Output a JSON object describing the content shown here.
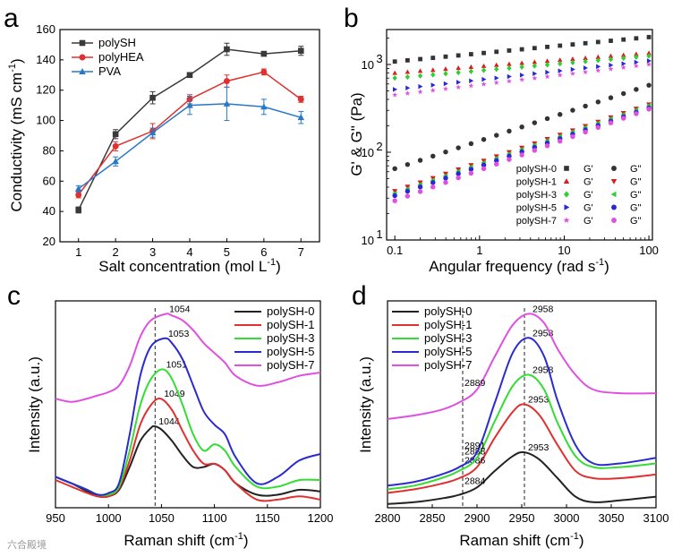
{
  "panel_labels": [
    "a",
    "b",
    "c",
    "d"
  ],
  "watermark": "六合殿境",
  "chart_data": [
    {
      "type": "line",
      "panel": "a",
      "xlabel": "Salt concentration (mol L",
      "xlabel_sup": "-1",
      "xlabel_end": ")",
      "ylabel": "Conductivity (mS cm",
      "ylabel_sup": "-1",
      "ylabel_end": ")",
      "xlim": [
        0.5,
        7.5
      ],
      "ylim": [
        20,
        160
      ],
      "xticks": [
        1,
        2,
        3,
        4,
        5,
        6,
        7
      ],
      "yticks": [
        20,
        40,
        60,
        80,
        100,
        120,
        140,
        160
      ],
      "legend_position": "top-left",
      "series": [
        {
          "name": "polySH",
          "color": "#3a3a3a",
          "marker": "square",
          "x": [
            1,
            2,
            3,
            4,
            5,
            6,
            7
          ],
          "y": [
            41,
            91,
            115,
            130,
            147,
            144,
            146
          ],
          "err": [
            2,
            3,
            4,
            1.5,
            4,
            1.5,
            3
          ]
        },
        {
          "name": "polyHEA",
          "color": "#e03030",
          "marker": "circle",
          "x": [
            1,
            2,
            3,
            4,
            5,
            6,
            7
          ],
          "y": [
            51,
            83,
            93,
            114,
            126,
            132,
            114
          ],
          "err": [
            2,
            3,
            5,
            3,
            4,
            2,
            2
          ]
        },
        {
          "name": "PVA",
          "color": "#2878c8",
          "marker": "triangle",
          "x": [
            1,
            2,
            3,
            4,
            5,
            6,
            7
          ],
          "y": [
            55,
            73,
            92,
            110,
            111,
            109,
            102
          ],
          "err": [
            2,
            3,
            3,
            6,
            11,
            5,
            4
          ]
        }
      ]
    },
    {
      "type": "scatter",
      "panel": "b",
      "xlabel": "Angular frequency (rad s",
      "xlabel_sup": "-1",
      "xlabel_end": ")",
      "ylabel": "G' & G\" (Pa)",
      "x_scale": "log",
      "y_scale": "log",
      "xlim": [
        0.08,
        110
      ],
      "ylim": [
        10,
        2500
      ],
      "xtick_labels": [
        "0.1",
        "1",
        "10",
        "100"
      ],
      "xtick_values": [
        0.1,
        1,
        10,
        100
      ],
      "ytick_values": [
        10,
        100,
        1000
      ],
      "ytick_base": "10",
      "ytick_exponents": [
        "1",
        "2",
        "3"
      ],
      "legend_position": "bottom-right",
      "legend_g1": "G'",
      "legend_g2": "G\"",
      "series": [
        {
          "name": "polySH-0",
          "color": "#333333",
          "gp_marker": "square",
          "gpp_marker": "circle",
          "gp": [
            1080,
            2050
          ],
          "gpp": [
            65,
            580
          ]
        },
        {
          "name": "polySH-1",
          "color": "#d42020",
          "gp_marker": "triangle-up",
          "gpp_marker": "triangle-down",
          "gp": [
            800,
            1350
          ],
          "gpp": [
            36,
            350
          ]
        },
        {
          "name": "polySH-3",
          "color": "#33cc33",
          "gp_marker": "diamond",
          "gpp_marker": "triangle-left",
          "gp": [
            700,
            1250
          ],
          "gpp": [
            34,
            340
          ]
        },
        {
          "name": "polySH-5",
          "color": "#2828d8",
          "gp_marker": "triangle-right",
          "gpp_marker": "hexagon",
          "gp": [
            520,
            1100
          ],
          "gpp": [
            32,
            320
          ]
        },
        {
          "name": "polySH-7",
          "color": "#e050e0",
          "gp_marker": "star",
          "gpp_marker": "hexagon",
          "gp": [
            450,
            1000
          ],
          "gpp": [
            28,
            310
          ]
        }
      ]
    },
    {
      "type": "line",
      "panel": "c",
      "xlabel": "Raman shift (cm",
      "xlabel_sup": "-1",
      "xlabel_end": ")",
      "ylabel": "Intensity (a.u.)",
      "xlim": [
        950,
        1200
      ],
      "xticks": [
        950,
        1000,
        1050,
        1100,
        1150,
        1200
      ],
      "reference_line_x": 1044,
      "legend_position": "top-right",
      "series": [
        {
          "name": "polySH-0",
          "color": "#222222",
          "peak": 1044,
          "peak_label": "1044",
          "x": [
            950,
            965,
            980,
            990,
            1000,
            1010,
            1020,
            1030,
            1040,
            1044,
            1050,
            1060,
            1070,
            1080,
            1090,
            1100,
            1110,
            1120,
            1140,
            1160,
            1180,
            1200
          ],
          "y": [
            0.14,
            0.1,
            0.05,
            0.02,
            0.02,
            0.06,
            0.2,
            0.36,
            0.44,
            0.45,
            0.43,
            0.36,
            0.27,
            0.2,
            0.2,
            0.22,
            0.18,
            0.1,
            0.03,
            0.03,
            0.06,
            0.05
          ]
        },
        {
          "name": "polySH-1",
          "color": "#e03030",
          "peak": 1049,
          "peak_label": "1049",
          "x": [
            950,
            965,
            980,
            990,
            1000,
            1010,
            1020,
            1030,
            1040,
            1049,
            1060,
            1070,
            1080,
            1090,
            1100,
            1110,
            1120,
            1140,
            1160,
            1180,
            1200
          ],
          "y": [
            0.12,
            0.08,
            0.04,
            0.02,
            0.02,
            0.07,
            0.24,
            0.46,
            0.58,
            0.62,
            0.55,
            0.42,
            0.3,
            0.22,
            0.22,
            0.18,
            0.1,
            0.0,
            0.0,
            0.02,
            0.0
          ]
        },
        {
          "name": "polySH-3",
          "color": "#33dd33",
          "peak": 1051,
          "peak_label": "1051",
          "x": [
            950,
            965,
            980,
            990,
            1000,
            1010,
            1020,
            1030,
            1040,
            1051,
            1060,
            1070,
            1080,
            1090,
            1100,
            1110,
            1120,
            1140,
            1160,
            1180,
            1200
          ],
          "y": [
            0.14,
            0.1,
            0.06,
            0.03,
            0.03,
            0.08,
            0.3,
            0.58,
            0.74,
            0.8,
            0.74,
            0.58,
            0.4,
            0.3,
            0.34,
            0.3,
            0.2,
            0.08,
            0.08,
            0.12,
            0.12
          ]
        },
        {
          "name": "polySH-5",
          "color": "#2a2ad0",
          "peak": 1053,
          "peak_label": "1053",
          "x": [
            950,
            965,
            980,
            990,
            1000,
            1010,
            1020,
            1030,
            1040,
            1053,
            1060,
            1070,
            1080,
            1090,
            1100,
            1110,
            1120,
            1140,
            1160,
            1180,
            1200
          ],
          "y": [
            0.14,
            0.1,
            0.06,
            0.03,
            0.04,
            0.1,
            0.4,
            0.76,
            0.94,
            0.99,
            0.96,
            0.86,
            0.7,
            0.54,
            0.46,
            0.4,
            0.26,
            0.1,
            0.14,
            0.24,
            0.28
          ]
        },
        {
          "name": "polySH-7",
          "color": "#e050e0",
          "peak": 1054,
          "peak_label": "1054",
          "x": [
            950,
            965,
            980,
            990,
            1000,
            1010,
            1020,
            1030,
            1040,
            1054,
            1060,
            1070,
            1080,
            1090,
            1100,
            1110,
            1120,
            1140,
            1160,
            1180,
            1200
          ],
          "y": [
            0.62,
            0.6,
            0.62,
            0.64,
            0.66,
            0.7,
            0.82,
            1.0,
            1.1,
            1.14,
            1.13,
            1.1,
            1.04,
            0.96,
            0.9,
            0.84,
            0.76,
            0.7,
            0.72,
            0.76,
            0.78
          ]
        }
      ]
    },
    {
      "type": "line",
      "panel": "d",
      "xlabel": "Raman shift (cm",
      "xlabel_sup": "-1",
      "xlabel_end": ")",
      "ylabel": "Intensity (a.u.)",
      "xlim": [
        2800,
        3100
      ],
      "xticks": [
        2800,
        2850,
        2900,
        2950,
        3000,
        3050,
        3100
      ],
      "reference_lines_x": [
        2884,
        2953
      ],
      "legend_position": "top-left",
      "series": [
        {
          "name": "polySH-0",
          "color": "#222222",
          "peak": 2953,
          "peak_label": "2953",
          "shoulder_label": "2884",
          "x": [
            2800,
            2830,
            2860,
            2880,
            2900,
            2920,
            2940,
            2953,
            2970,
            2990,
            3010,
            3030,
            3060,
            3100
          ],
          "y": [
            0.0,
            0.01,
            0.03,
            0.05,
            0.09,
            0.18,
            0.26,
            0.28,
            0.24,
            0.14,
            0.04,
            0.01,
            0.02,
            0.04
          ]
        },
        {
          "name": "polySH-1",
          "color": "#e03030",
          "peak": 2953,
          "peak_label": "2953",
          "shoulder_label": "2886",
          "x": [
            2800,
            2830,
            2860,
            2880,
            2900,
            2920,
            2940,
            2953,
            2970,
            2990,
            3010,
            3030,
            3060,
            3100
          ],
          "y": [
            0.06,
            0.08,
            0.11,
            0.14,
            0.2,
            0.36,
            0.5,
            0.54,
            0.48,
            0.32,
            0.18,
            0.14,
            0.14,
            0.16
          ]
        },
        {
          "name": "polySH-3",
          "color": "#33dd33",
          "peak": 2958,
          "peak_label": "2958",
          "shoulder_label": "2888",
          "x": [
            2800,
            2830,
            2860,
            2880,
            2900,
            2920,
            2940,
            2958,
            2975,
            2990,
            3010,
            3030,
            3060,
            3100
          ],
          "y": [
            0.08,
            0.1,
            0.14,
            0.18,
            0.25,
            0.45,
            0.64,
            0.7,
            0.62,
            0.44,
            0.26,
            0.2,
            0.2,
            0.22
          ]
        },
        {
          "name": "polySH-5",
          "color": "#2a2ad0",
          "peak": 2958,
          "peak_label": "2958",
          "shoulder_label": "2891",
          "x": [
            2800,
            2830,
            2860,
            2880,
            2900,
            2920,
            2940,
            2958,
            2975,
            2990,
            3010,
            3030,
            3060,
            3100
          ],
          "y": [
            0.1,
            0.12,
            0.16,
            0.2,
            0.28,
            0.55,
            0.82,
            0.9,
            0.8,
            0.56,
            0.32,
            0.22,
            0.22,
            0.25
          ]
        },
        {
          "name": "polySH-7",
          "color": "#e050e0",
          "peak": 2958,
          "peak_label": "2958",
          "shoulder_label": "2889",
          "x": [
            2800,
            2830,
            2860,
            2880,
            2900,
            2920,
            2940,
            2958,
            2975,
            2990,
            3010,
            3030,
            3060,
            3100
          ],
          "y": [
            0.46,
            0.48,
            0.51,
            0.55,
            0.62,
            0.8,
            0.97,
            1.03,
            0.98,
            0.84,
            0.7,
            0.62,
            0.6,
            0.6
          ]
        }
      ]
    }
  ]
}
